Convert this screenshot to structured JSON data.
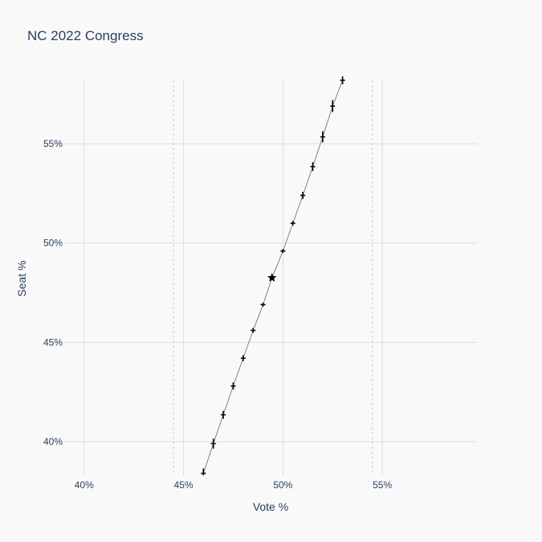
{
  "chart_data": {
    "type": "scatter",
    "title": "NC 2022 Congress",
    "xlabel": "Vote %",
    "ylabel": "Seat %",
    "xlim": [
      39,
      59.8
    ],
    "ylim": [
      38.3,
      58.2
    ],
    "xticks": [
      {
        "value": 40,
        "label": "40%"
      },
      {
        "value": 45,
        "label": "45%"
      },
      {
        "value": 50,
        "label": "50%"
      },
      {
        "value": 55,
        "label": "55%"
      }
    ],
    "yticks": [
      {
        "value": 40,
        "label": "40%"
      },
      {
        "value": 45,
        "label": "45%"
      },
      {
        "value": 50,
        "label": "50%"
      },
      {
        "value": 55,
        "label": "55%"
      }
    ],
    "reference_lines_x": [
      44.5,
      54.5
    ],
    "grid": true,
    "colors": {
      "background": "#f9f9f9",
      "grid": "#dddddd",
      "line": "#808080",
      "marker": "#000000",
      "reference": "#cccccc",
      "text": "#2a3f5f"
    },
    "curve": {
      "x": [
        46.0,
        46.5,
        47.0,
        47.5,
        48.0,
        48.5,
        49.0,
        49.45,
        50.0,
        50.5,
        51.0,
        51.5,
        52.0,
        52.5,
        53.0
      ],
      "y": [
        38.4,
        39.9,
        41.35,
        42.8,
        44.2,
        45.6,
        46.9,
        48.25,
        49.6,
        51.0,
        52.4,
        53.85,
        55.35,
        56.9,
        58.2
      ]
    },
    "points": [
      {
        "x": 46.0,
        "y": 38.4,
        "err": 0.25
      },
      {
        "x": 46.5,
        "y": 39.9,
        "err": 0.25
      },
      {
        "x": 47.0,
        "y": 41.35,
        "err": 0.2
      },
      {
        "x": 47.5,
        "y": 42.8,
        "err": 0.18
      },
      {
        "x": 48.0,
        "y": 44.2,
        "err": 0.15
      },
      {
        "x": 48.5,
        "y": 45.6,
        "err": 0.12
      },
      {
        "x": 49.0,
        "y": 46.9,
        "err": 0.1
      },
      {
        "x": 50.0,
        "y": 49.6,
        "err": 0.1
      },
      {
        "x": 50.5,
        "y": 51.0,
        "err": 0.12
      },
      {
        "x": 51.0,
        "y": 52.4,
        "err": 0.18
      },
      {
        "x": 51.5,
        "y": 53.85,
        "err": 0.22
      },
      {
        "x": 52.0,
        "y": 55.35,
        "err": 0.28
      },
      {
        "x": 52.5,
        "y": 56.9,
        "err": 0.3
      },
      {
        "x": 53.0,
        "y": 58.2,
        "err": 0.2
      }
    ],
    "actual": {
      "x": 49.45,
      "y": 48.25,
      "marker": "star"
    }
  }
}
